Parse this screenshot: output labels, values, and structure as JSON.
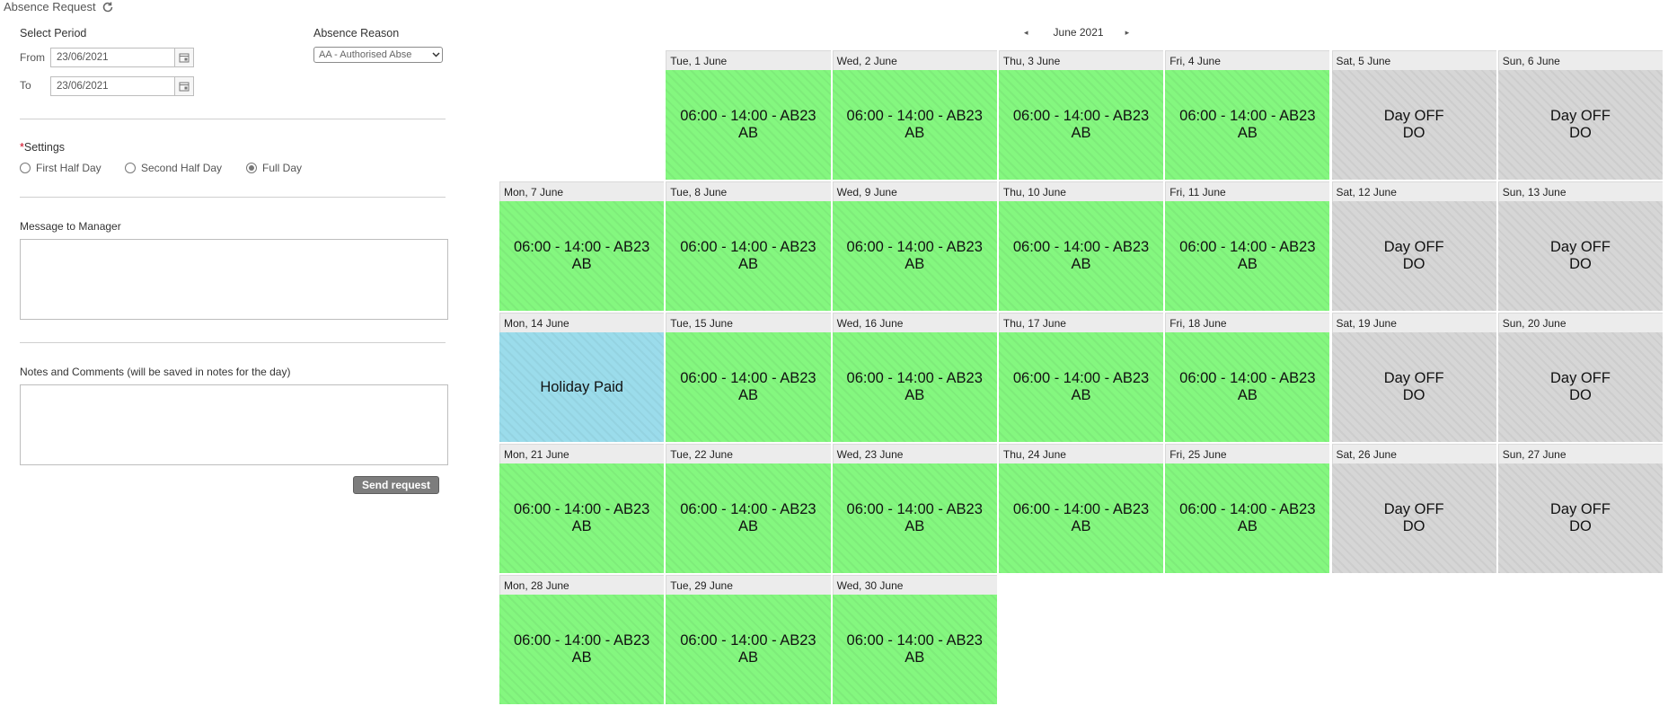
{
  "form": {
    "title": "Absence Request",
    "select_period_label": "Select Period",
    "from_label": "From",
    "from_value": "23/06/2021",
    "to_label": "To",
    "to_value": "23/06/2021",
    "absence_reason_label": "Absence Reason",
    "absence_reason_value": "AA - Authorised Abse",
    "settings_label": "Settings",
    "required_marker": "*",
    "options": [
      "First Half Day",
      "Second Half Day",
      "Full Day"
    ],
    "selected_option": "Full Day",
    "message_label": "Message to Manager",
    "notes_label": "Notes and Comments (will be saved in notes for the day)",
    "send_button": "Send request"
  },
  "calendar": {
    "month_label": "June 2021",
    "prev_arrow": "◂",
    "next_arrow": "▸",
    "weeks": [
      [
        null,
        {
          "header": "Tue, 1 June",
          "type": "work",
          "line1": "06:00 - 14:00 - AB23",
          "line2": "AB"
        },
        {
          "header": "Wed, 2 June",
          "type": "work",
          "line1": "06:00 - 14:00 - AB23",
          "line2": "AB"
        },
        {
          "header": "Thu, 3 June",
          "type": "work",
          "line1": "06:00 - 14:00 - AB23",
          "line2": "AB"
        },
        {
          "header": "Fri, 4 June",
          "type": "work",
          "line1": "06:00 - 14:00 - AB23",
          "line2": "AB"
        },
        {
          "header": "Sat, 5 June",
          "type": "off",
          "line1": "Day OFF",
          "line2": "DO"
        },
        {
          "header": "Sun, 6 June",
          "type": "off",
          "line1": "Day OFF",
          "line2": "DO"
        }
      ],
      [
        {
          "header": "Mon, 7 June",
          "type": "work",
          "line1": "06:00 - 14:00 - AB23",
          "line2": "AB"
        },
        {
          "header": "Tue, 8 June",
          "type": "work",
          "line1": "06:00 - 14:00 - AB23",
          "line2": "AB"
        },
        {
          "header": "Wed, 9 June",
          "type": "work",
          "line1": "06:00 - 14:00 - AB23",
          "line2": "AB"
        },
        {
          "header": "Thu, 10 June",
          "type": "work",
          "line1": "06:00 - 14:00 - AB23",
          "line2": "AB"
        },
        {
          "header": "Fri, 11 June",
          "type": "work",
          "line1": "06:00 - 14:00 - AB23",
          "line2": "AB"
        },
        {
          "header": "Sat, 12 June",
          "type": "off",
          "line1": "Day OFF",
          "line2": "DO"
        },
        {
          "header": "Sun, 13 June",
          "type": "off",
          "line1": "Day OFF",
          "line2": "DO"
        }
      ],
      [
        {
          "header": "Mon, 14 June",
          "type": "holiday",
          "line1": "Holiday Paid",
          "line2": ""
        },
        {
          "header": "Tue, 15 June",
          "type": "work",
          "line1": "06:00 - 14:00 - AB23",
          "line2": "AB"
        },
        {
          "header": "Wed, 16 June",
          "type": "work",
          "line1": "06:00 - 14:00 - AB23",
          "line2": "AB"
        },
        {
          "header": "Thu, 17 June",
          "type": "work",
          "line1": "06:00 - 14:00 - AB23",
          "line2": "AB"
        },
        {
          "header": "Fri, 18 June",
          "type": "work",
          "line1": "06:00 - 14:00 - AB23",
          "line2": "AB"
        },
        {
          "header": "Sat, 19 June",
          "type": "off",
          "line1": "Day OFF",
          "line2": "DO"
        },
        {
          "header": "Sun, 20 June",
          "type": "off",
          "line1": "Day OFF",
          "line2": "DO"
        }
      ],
      [
        {
          "header": "Mon, 21 June",
          "type": "work",
          "line1": "06:00 - 14:00 - AB23",
          "line2": "AB"
        },
        {
          "header": "Tue, 22 June",
          "type": "work",
          "line1": "06:00 - 14:00 - AB23",
          "line2": "AB"
        },
        {
          "header": "Wed, 23 June",
          "type": "work",
          "line1": "06:00 - 14:00 - AB23",
          "line2": "AB"
        },
        {
          "header": "Thu, 24 June",
          "type": "work",
          "line1": "06:00 - 14:00 - AB23",
          "line2": "AB"
        },
        {
          "header": "Fri, 25 June",
          "type": "work",
          "line1": "06:00 - 14:00 - AB23",
          "line2": "AB"
        },
        {
          "header": "Sat, 26 June",
          "type": "off",
          "line1": "Day OFF",
          "line2": "DO"
        },
        {
          "header": "Sun, 27 June",
          "type": "off",
          "line1": "Day OFF",
          "line2": "DO"
        }
      ],
      [
        {
          "header": "Mon, 28 June",
          "type": "work",
          "line1": "06:00 - 14:00 - AB23",
          "line2": "AB"
        },
        {
          "header": "Tue, 29 June",
          "type": "work",
          "line1": "06:00 - 14:00 - AB23",
          "line2": "AB"
        },
        {
          "header": "Wed, 30 June",
          "type": "work",
          "line1": "06:00 - 14:00 - AB23",
          "line2": "AB"
        },
        null,
        null,
        null,
        null
      ]
    ]
  },
  "colors": {
    "work": "#84f77f",
    "off": "#d6d6d6",
    "holiday": "#9bdceb",
    "button": "#7d7d7d",
    "required": "#d0021b"
  },
  "icons": {
    "refresh": "refresh-icon",
    "calendar": "calendar-icon",
    "dropdown": "chevron-down-icon"
  }
}
